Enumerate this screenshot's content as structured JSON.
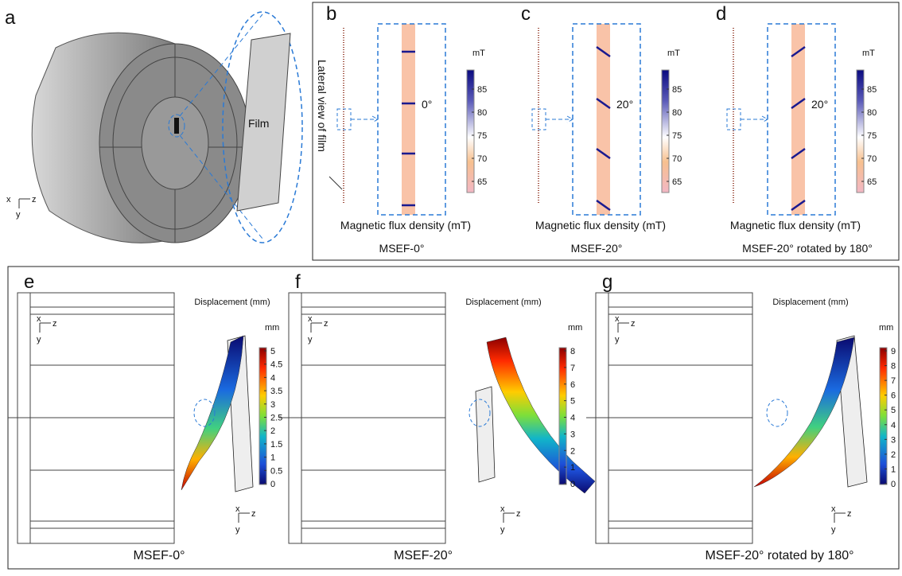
{
  "triad": {
    "x": "x",
    "y": "y",
    "z": "z"
  },
  "panel_a": {
    "label": "a",
    "film_label": "Film"
  },
  "field_panels": [
    {
      "label": "b",
      "annotation": "Lateral view of film",
      "angle": "0°",
      "unit": "mT",
      "colorbar_ticks": [
        "85",
        "80",
        "75",
        "70",
        "65"
      ],
      "xlabel": "Magnetic flux density (mT)",
      "caption": "MSEF-0°"
    },
    {
      "label": "c",
      "angle": "20°",
      "unit": "mT",
      "colorbar_ticks": [
        "85",
        "80",
        "75",
        "70",
        "65"
      ],
      "xlabel": "Magnetic flux density (mT)",
      "caption": "MSEF-20°"
    },
    {
      "label": "d",
      "angle": "20°",
      "unit": "mT",
      "colorbar_ticks": [
        "85",
        "80",
        "75",
        "70",
        "65"
      ],
      "xlabel": "Magnetic flux density (mT)",
      "caption": "MSEF-20° rotated by 180°"
    }
  ],
  "displacement_panels": [
    {
      "label": "e",
      "title": "Displacement (mm)",
      "unit": "mm",
      "colorbar_ticks": [
        "5",
        "4.5",
        "4",
        "3.5",
        "3",
        "2.5",
        "2",
        "1.5",
        "1",
        "0.5",
        "0"
      ],
      "caption": "MSEF-0°"
    },
    {
      "label": "f",
      "title": "Displacement (mm)",
      "unit": "mm",
      "colorbar_ticks": [
        "8",
        "7",
        "6",
        "5",
        "4",
        "3",
        "2",
        "1",
        "0"
      ],
      "caption": "MSEF-20°"
    },
    {
      "label": "g",
      "title": "Displacement (mm)",
      "unit": "mm",
      "colorbar_ticks": [
        "9",
        "8",
        "7",
        "6",
        "5",
        "4",
        "3",
        "2",
        "1",
        "0"
      ],
      "caption": "MSEF-20° rotated by 180°"
    }
  ]
}
